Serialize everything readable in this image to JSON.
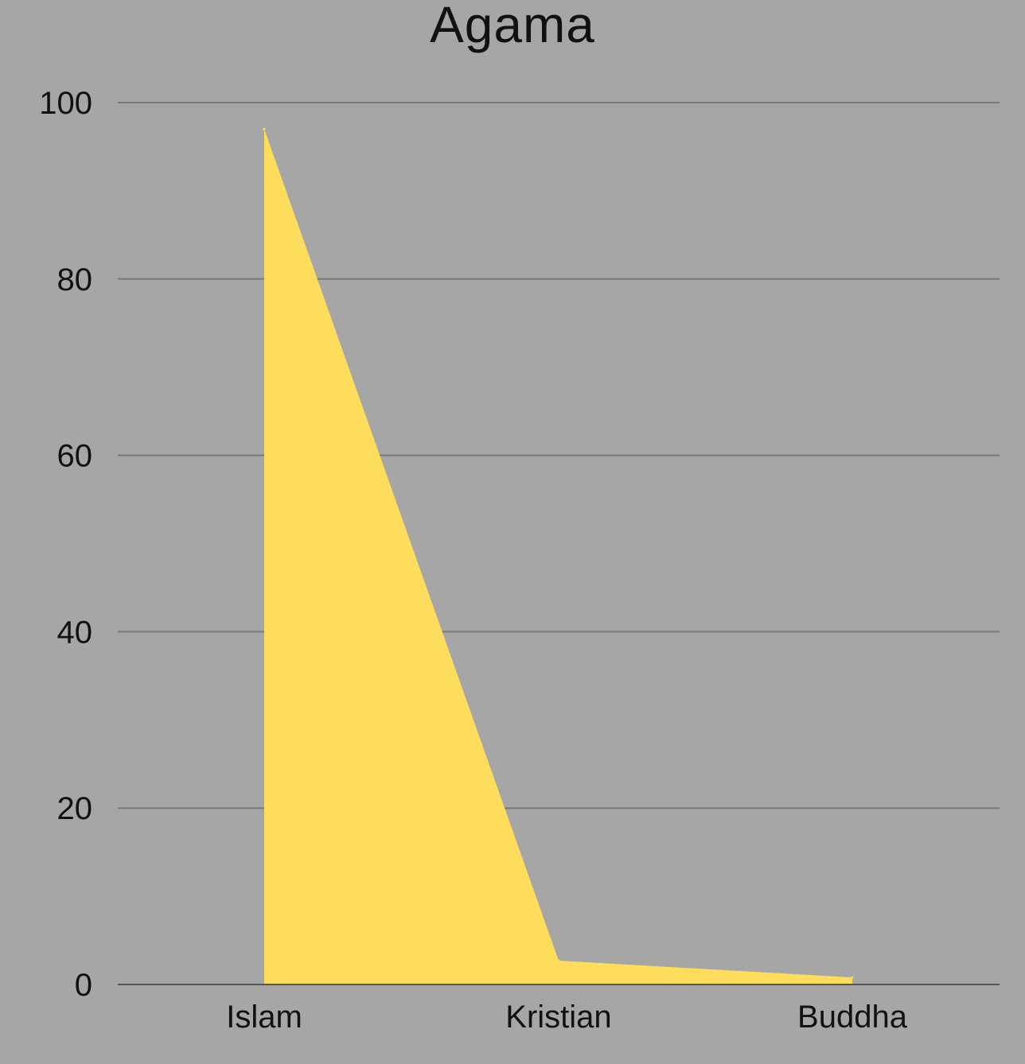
{
  "chart_data": {
    "type": "area",
    "title": "Agama",
    "xlabel": "",
    "ylabel": "",
    "categories": [
      "Islam",
      "Kristian",
      "Buddha"
    ],
    "values": [
      97,
      2.7,
      0.8
    ],
    "ylim": [
      0,
      100
    ],
    "yticks": [
      0,
      20,
      40,
      60,
      80,
      100
    ],
    "grid": true,
    "legend": "none",
    "colors": {
      "fill": "#ffdd5c",
      "background": "#a6a6a6",
      "grid": "#7a7a7a",
      "axis": "#555555",
      "text": "#111111"
    }
  }
}
